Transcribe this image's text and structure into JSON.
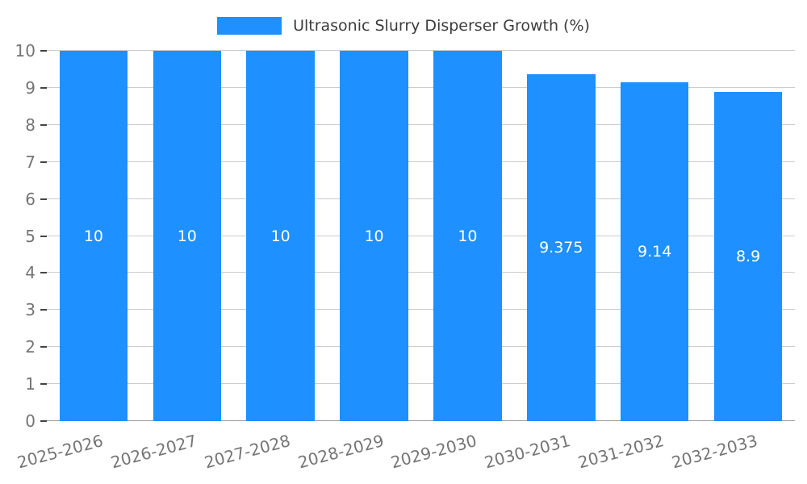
{
  "chart_data": {
    "type": "bar",
    "title": "Ultrasonic Slurry Disperser Growth (%)",
    "categories": [
      "2025-2026",
      "2026-2027",
      "2027-2028",
      "2028-2029",
      "2029-2030",
      "2030-2031",
      "2031-2032",
      "2032-2033"
    ],
    "values": [
      10,
      10,
      10,
      10,
      10,
      9.375,
      9.14,
      8.9
    ],
    "value_labels": [
      "10",
      "10",
      "10",
      "10",
      "10",
      "9.375",
      "9.14",
      "8.9"
    ],
    "xlabel": "",
    "ylabel": "",
    "ylim": [
      0,
      10
    ],
    "y_ticks": [
      0,
      1,
      2,
      3,
      4,
      5,
      6,
      7,
      8,
      9,
      10
    ],
    "grid": true,
    "legend_position": "top-center",
    "bar_color": "#1e90ff",
    "bar_label_color": "#ffffff",
    "axis_text_color": "#757575",
    "grid_color": "#cccccc",
    "title_color": "#3c3c3c"
  }
}
